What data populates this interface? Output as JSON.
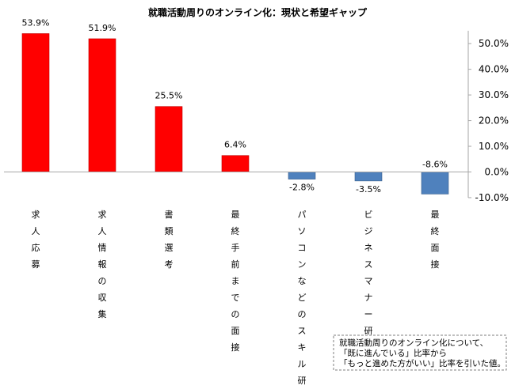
{
  "chart_data": {
    "type": "bar",
    "title": "就職活動周りのオンライン化：現状と希望ギャップ",
    "categories": [
      "求人応募",
      "求人情報の収集",
      "書類選考",
      "最終手前までの面接",
      "パソコンなどのスキル研修",
      "ビジネスマナー研修",
      "最終面接"
    ],
    "values": [
      53.9,
      51.9,
      25.5,
      6.4,
      -2.8,
      -3.5,
      -8.6
    ],
    "data_labels": [
      "53.9%",
      "51.9%",
      "25.5%",
      "6.4%",
      "-2.8%",
      "-3.5%",
      "-8.6%"
    ],
    "ylim": [
      -10,
      55
    ],
    "yticks": [
      50,
      40,
      30,
      20,
      10,
      0,
      -10
    ],
    "ytick_labels": [
      "50.0%",
      "40.0%",
      "30.0%",
      "20.0%",
      "10.0%",
      "0.0%",
      "-10.0%"
    ],
    "y_axis_position": "right",
    "grid": false,
    "colors": {
      "positive": "#ff0000",
      "negative": "#4f81bd"
    },
    "note_lines": [
      "就職活動周りのオンライン化について、",
      "「既に進んでいる」比率から",
      "「もっと進めた方がいい」比率を引いた値。"
    ]
  }
}
